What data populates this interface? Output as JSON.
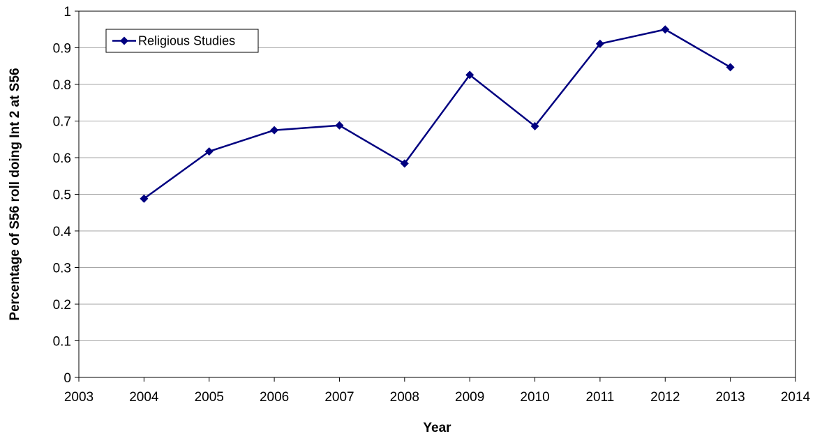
{
  "chart_data": {
    "type": "line",
    "title": "",
    "xlabel": "Year",
    "ylabel": "Percentage of S56 roll doing Int 2 at S56",
    "xlim": [
      2003,
      2014
    ],
    "ylim": [
      0,
      1
    ],
    "x_ticks": [
      2003,
      2004,
      2005,
      2006,
      2007,
      2008,
      2009,
      2010,
      2011,
      2012,
      2013,
      2014
    ],
    "y_ticks": [
      0,
      0.1,
      0.2,
      0.3,
      0.4,
      0.5,
      0.6,
      0.7,
      0.8,
      0.9,
      1
    ],
    "grid": "horizontal",
    "legend_position": "top-left",
    "series": [
      {
        "name": "Religious Studies",
        "color": "#000080",
        "marker": "diamond",
        "x": [
          2004,
          2005,
          2006,
          2007,
          2008,
          2009,
          2010,
          2011,
          2012,
          2013
        ],
        "values": [
          0.488,
          0.617,
          0.675,
          0.688,
          0.584,
          0.826,
          0.686,
          0.911,
          0.95,
          0.847
        ]
      }
    ]
  }
}
